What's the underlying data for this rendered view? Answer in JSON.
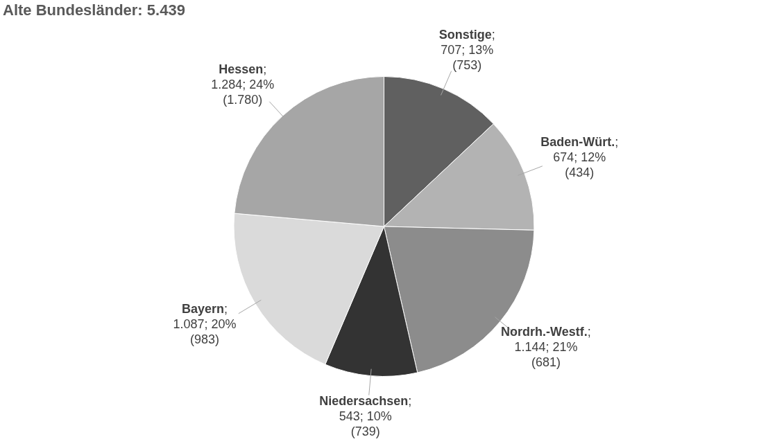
{
  "chart_data": {
    "type": "pie",
    "title": "Alte Bundesländer: 5.439",
    "categories": [
      "Sonstige",
      "Baden-Würt.",
      "Nordrh.-Westf.",
      "Niedersachsen",
      "Bayern",
      "Hessen"
    ],
    "values": [
      707,
      674,
      1144,
      543,
      1087,
      1284
    ],
    "colors": [
      "#606060",
      "#b3b3b3",
      "#8c8c8c",
      "#333333",
      "#dadada",
      "#a6a6a6"
    ],
    "value_labels": [
      ";\n707; 13%\n(753)",
      ";\n674; 12%\n(434)",
      ";\n1.144; 21%\n(681)",
      ";\n543; 10%\n(739)",
      ";\n1.087; 20%\n(983)",
      ";\n1.284; 24%\n(1.780)"
    ],
    "legend": false
  }
}
